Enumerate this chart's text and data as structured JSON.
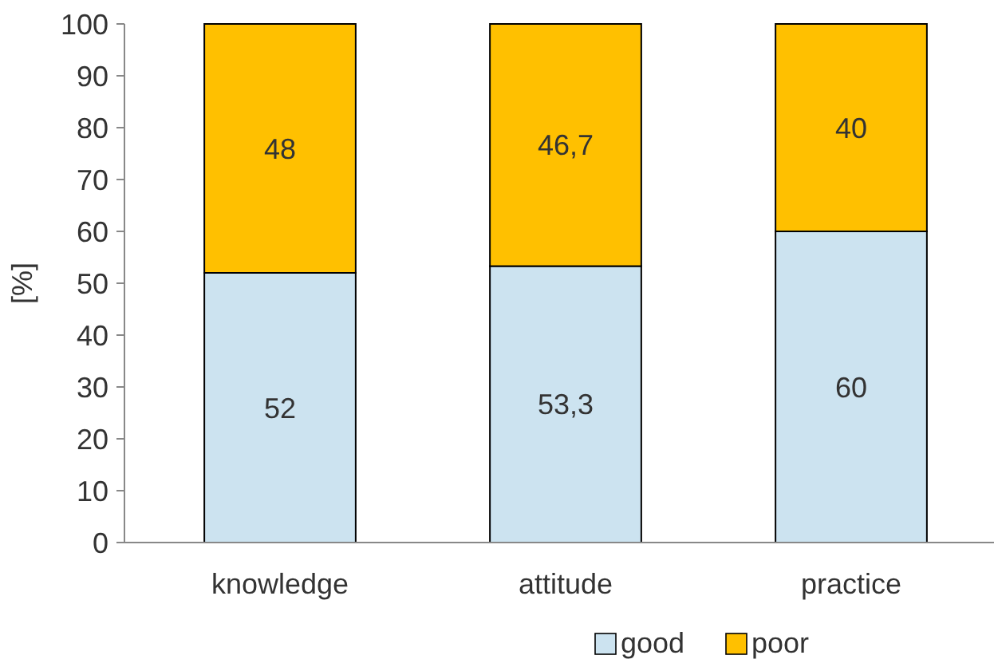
{
  "chart_data": {
    "type": "bar",
    "stacked": true,
    "ylabel": "[%]",
    "categories": [
      "knowledge",
      "attitude",
      "practice"
    ],
    "ylim": [
      0,
      100
    ],
    "yticks": [
      0,
      10,
      20,
      30,
      40,
      50,
      60,
      70,
      80,
      90,
      100
    ],
    "grid": false,
    "legend": "bottom right",
    "series": [
      {
        "name": "good",
        "color": "#cce3f0",
        "values": [
          52,
          53.3,
          60
        ],
        "value_labels": [
          "52",
          "53,3",
          "60"
        ]
      },
      {
        "name": "poor",
        "color": "#ffc000",
        "values": [
          48,
          46.7,
          40
        ],
        "value_labels": [
          "48",
          "46,7",
          "40"
        ]
      }
    ]
  }
}
